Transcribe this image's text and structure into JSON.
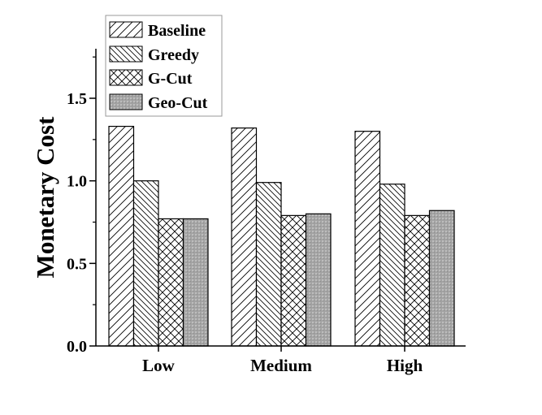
{
  "chart_data": {
    "type": "bar",
    "title": "",
    "xlabel": "",
    "ylabel": "Monetary Cost",
    "categories": [
      "Low",
      "Medium",
      "High"
    ],
    "series": [
      {
        "name": "Baseline",
        "pattern": "forward-diagonal-hatch",
        "values": [
          1.33,
          1.32,
          1.3
        ]
      },
      {
        "name": "Greedy",
        "pattern": "backward-diagonal-hatch",
        "values": [
          1.0,
          0.99,
          0.98
        ]
      },
      {
        "name": "G-Cut",
        "pattern": "cross-hatch",
        "values": [
          0.77,
          0.79,
          0.79
        ]
      },
      {
        "name": "Geo-Cut",
        "pattern": "gray-dotted-fill",
        "values": [
          0.77,
          0.8,
          0.82
        ]
      }
    ],
    "ylim": [
      0,
      1.75
    ],
    "yticks": [
      "0.0",
      "0.5",
      "1.0",
      "1.5"
    ],
    "ytick_values": [
      0,
      0.5,
      1.0,
      1.5
    ],
    "yminor_ticks": [
      0.25,
      0.75,
      1.25,
      1.75
    ],
    "grid": false,
    "legend_position": "top-left",
    "colors": {
      "geo_cut_fill": "#a8a8a8",
      "stroke": "#000000",
      "hatch": "#000000"
    }
  }
}
